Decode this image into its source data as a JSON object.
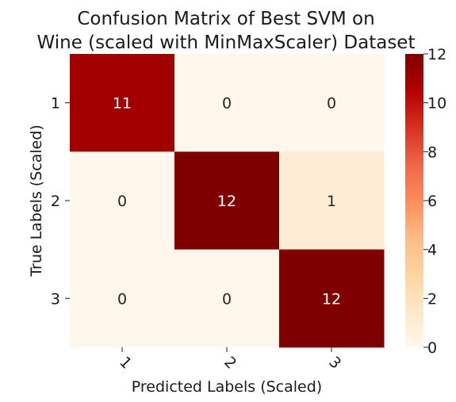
{
  "chart_data": {
    "type": "heatmap",
    "title_lines": [
      "Confusion Matrix of Best SVM on",
      "Wine (scaled with MinMaxScaler) Dataset"
    ],
    "xlabel": "Predicted Labels (Scaled)",
    "ylabel": "True Labels (Scaled)",
    "x_categories": [
      "1",
      "2",
      "3"
    ],
    "y_categories": [
      "1",
      "2",
      "3"
    ],
    "matrix": [
      [
        11,
        0,
        0
      ],
      [
        0,
        12,
        1
      ],
      [
        0,
        0,
        12
      ]
    ],
    "colorbar": {
      "min": 0,
      "max": 12,
      "ticks": [
        "0",
        "2",
        "4",
        "6",
        "8",
        "10",
        "12"
      ],
      "colormap": "OrRd"
    },
    "annotations": true
  }
}
